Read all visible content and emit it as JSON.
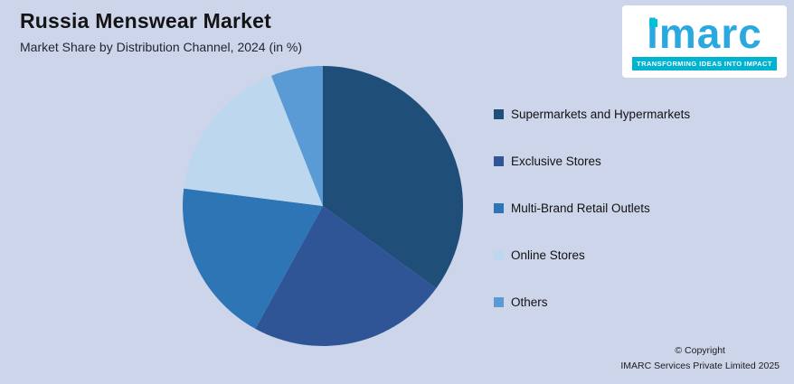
{
  "header": {
    "title": "Russia Menswear Market",
    "subtitle": "Market Share by Distribution Channel, 2024 (in %)"
  },
  "logo": {
    "name": "imarc",
    "tagline": "TRANSFORMING IDEAS INTO IMPACT",
    "brand_color": "#2aa9e0",
    "accent_color": "#00b3d1"
  },
  "chart_data": {
    "type": "pie",
    "title": "Russia Menswear Market",
    "subtitle": "Market Share by Distribution Channel, 2024 (in %)",
    "units": "%",
    "categories": [
      "Supermarkets and Hypermarkets",
      "Exclusive Stores",
      "Multi-Brand Retail Outlets",
      "Online Stores",
      "Others"
    ],
    "values": [
      35,
      23,
      19,
      17,
      6
    ],
    "colors": [
      "#1F4E79",
      "#2F5597",
      "#2E75B6",
      "#BDD7EE",
      "#5B9BD5"
    ],
    "start_angle_deg": 0,
    "direction": "clockwise",
    "legend_position": "right",
    "data_labels": false
  },
  "footer": {
    "copyright_line1": "© Copyright",
    "copyright_line2": "IMARC Services Private Limited 2025"
  }
}
